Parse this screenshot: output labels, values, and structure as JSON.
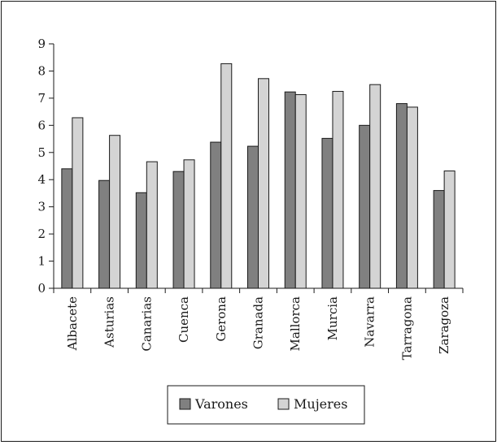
{
  "colors": {
    "varones": "#808080",
    "mujeres": "#d4d4d4",
    "stroke": "#1a1a1a"
  },
  "chart_data": {
    "type": "bar",
    "title": "",
    "xlabel": "",
    "ylabel": "",
    "ylim": [
      0,
      9
    ],
    "yticks": [
      "0",
      "1",
      "2",
      "3",
      "4",
      "5",
      "6",
      "7",
      "8",
      "9"
    ],
    "grid": false,
    "legend_position": "bottom",
    "categories": [
      "Albacete",
      "Asturias",
      "Canarias",
      "Cuenca",
      "Gerona",
      "Granada",
      "Mallorca",
      "Murcia",
      "Navarra",
      "Tarragona",
      "Zaragoza"
    ],
    "series": [
      {
        "name": "Varones",
        "values": [
          4.4,
          3.97,
          3.52,
          4.3,
          5.38,
          5.23,
          7.23,
          5.52,
          6.0,
          6.8,
          3.6
        ]
      },
      {
        "name": "Mujeres",
        "values": [
          6.28,
          5.63,
          4.66,
          4.73,
          8.27,
          7.72,
          7.13,
          7.25,
          7.5,
          6.67,
          4.32
        ]
      }
    ]
  }
}
